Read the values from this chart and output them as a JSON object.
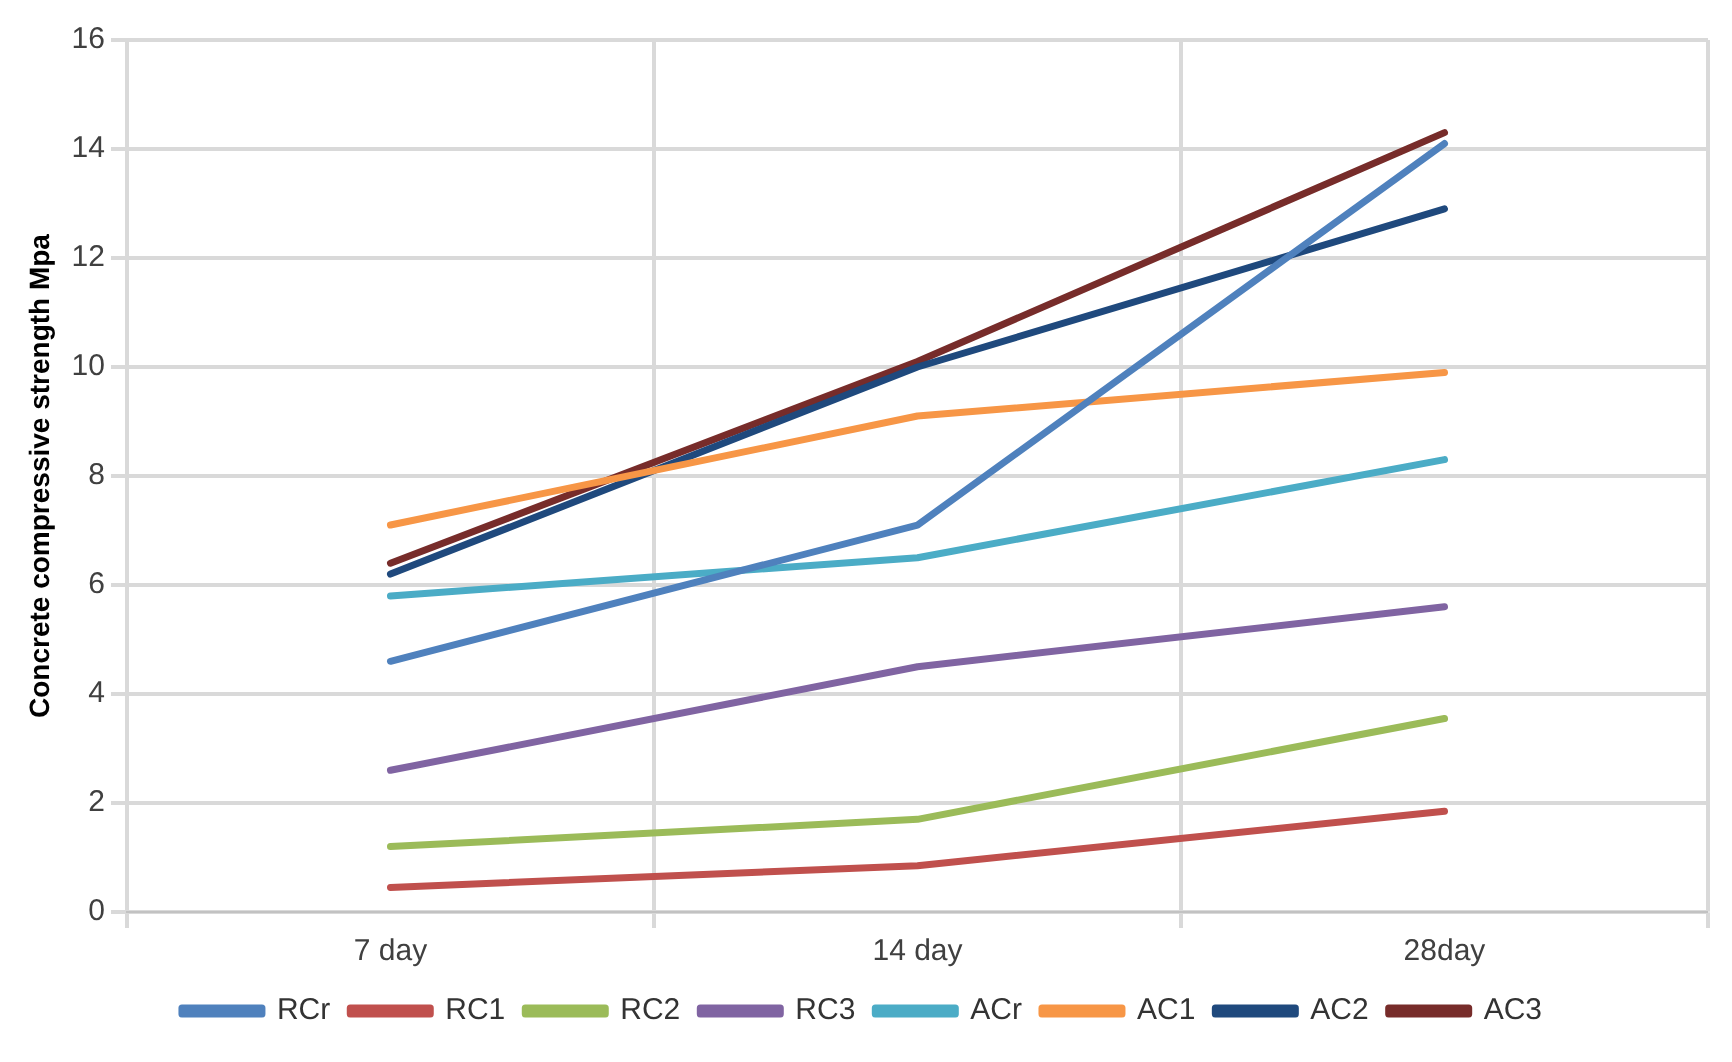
{
  "chart_data": {
    "type": "line",
    "ylabel": "Concrete compressive strength Mpa",
    "categories": [
      "7 day",
      "14 day",
      "28day"
    ],
    "series": [
      {
        "name": "RCr",
        "color": "#4f81bd",
        "values": [
          4.6,
          7.1,
          14.1
        ]
      },
      {
        "name": "RC1",
        "color": "#c0504d",
        "values": [
          0.45,
          0.85,
          1.85
        ]
      },
      {
        "name": "RC2",
        "color": "#9bbb59",
        "values": [
          1.2,
          1.7,
          3.55
        ]
      },
      {
        "name": "RC3",
        "color": "#8064a2",
        "values": [
          2.6,
          4.5,
          5.6
        ]
      },
      {
        "name": "ACr",
        "color": "#4bacc6",
        "values": [
          5.8,
          6.5,
          8.3
        ]
      },
      {
        "name": "AC1",
        "color": "#f79646",
        "values": [
          7.1,
          9.1,
          9.9
        ]
      },
      {
        "name": "AC2",
        "color": "#1f497d",
        "values": [
          6.2,
          10.0,
          12.9
        ]
      },
      {
        "name": "AC3",
        "color": "#772c2a",
        "values": [
          6.4,
          10.1,
          14.3
        ]
      }
    ],
    "ylim": [
      0,
      16
    ],
    "yticks": [
      0,
      2,
      4,
      6,
      8,
      10,
      12,
      14,
      16
    ],
    "grid": true,
    "legend": "bottom",
    "marker": "none",
    "line_style": "solid"
  }
}
